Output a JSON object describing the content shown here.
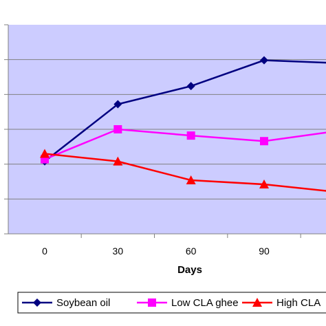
{
  "chart_data": {
    "type": "line",
    "xlabel": "Days",
    "x": [
      0,
      30,
      60,
      90,
      120
    ],
    "x_tick_labels": [
      "0",
      "30",
      "60",
      "90"
    ],
    "ylim": [
      0,
      6
    ],
    "y_gridlines": 6,
    "grid": true,
    "plot_background": "#ccccff",
    "legend_position": "bottom",
    "series": [
      {
        "name": "Soybean oil",
        "color": "#000080",
        "marker": "diamond",
        "values": [
          2.08,
          3.72,
          4.24,
          4.98,
          4.9
        ]
      },
      {
        "name": "Low  CLA ghee",
        "color": "#ff00ff",
        "marker": "square",
        "values": [
          2.14,
          3.0,
          2.82,
          2.66,
          2.95
        ]
      },
      {
        "name": "High CLA",
        "color": "#ff0000",
        "marker": "triangle",
        "values": [
          2.3,
          2.08,
          1.54,
          1.42,
          1.2
        ]
      }
    ]
  }
}
